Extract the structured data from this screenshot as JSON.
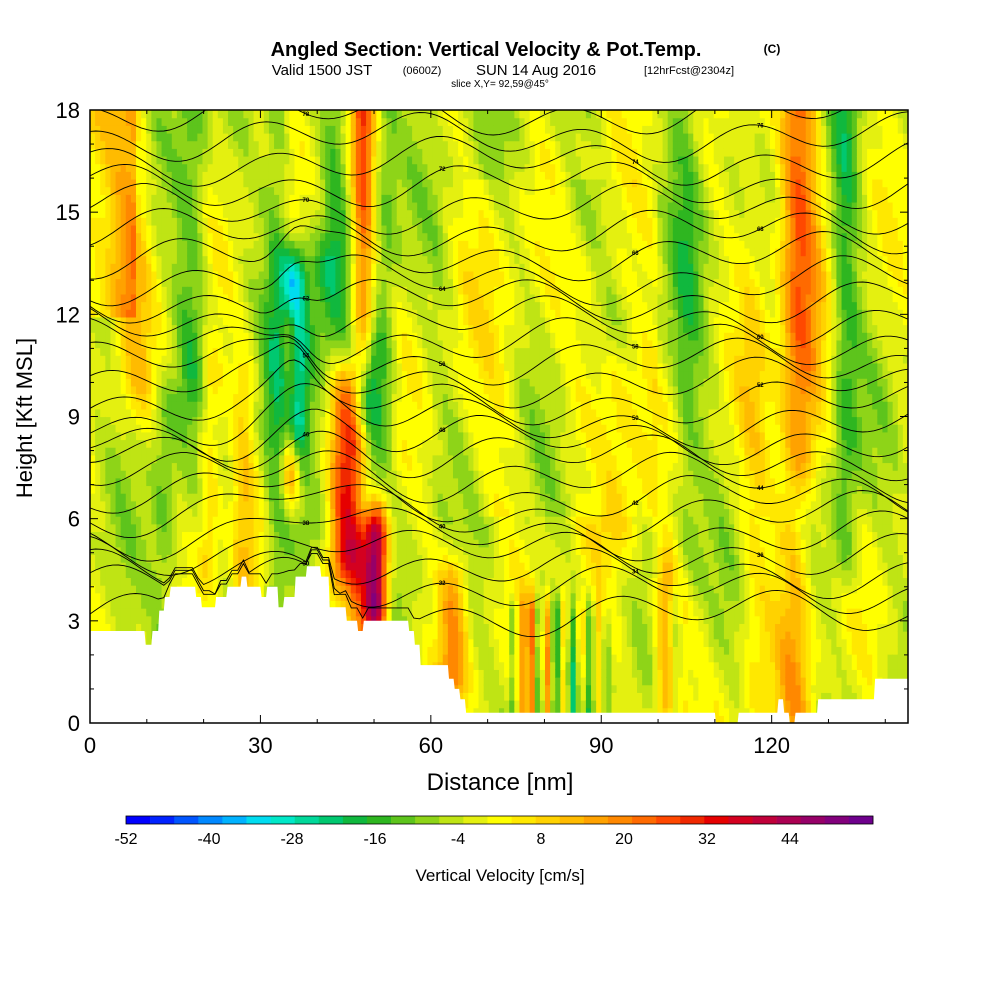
{
  "header": {
    "title": "Angled Section: Vertical Velocity & Pot.Temp.",
    "title_suffix": "(C)",
    "valid_prefix": "Valid 1500 JST",
    "valid_utc": "(0600Z)",
    "valid_date": "SUN 14 Aug 2016",
    "forecast": "[12hrFcst@2304z]",
    "slice": "slice X,Y= 92,59@45°"
  },
  "chart_data": {
    "type": "heatmap",
    "xlabel": "Distance [nm]",
    "ylabel": "Height [Kft MSL]",
    "xlim": [
      0,
      144
    ],
    "ylim": [
      0,
      18
    ],
    "x_ticks": [
      "0",
      "30",
      "60",
      "90",
      "120"
    ],
    "y_ticks": [
      "0",
      "3",
      "6",
      "9",
      "12",
      "15",
      "18"
    ],
    "colorbar": {
      "label": "Vertical Velocity [cm/s]",
      "tick_labels": [
        "-52",
        "-40",
        "-28",
        "-16",
        "-4",
        "8",
        "20",
        "32",
        "44"
      ],
      "min": -52,
      "max": 56,
      "step": 4,
      "colors": [
        "#0000ff",
        "#0022ff",
        "#0055ff",
        "#0088ff",
        "#00b2ff",
        "#00dcf0",
        "#00e8c8",
        "#00d89a",
        "#00c870",
        "#10b83e",
        "#2eb620",
        "#5dc41c",
        "#8ed418",
        "#bfe414",
        "#e4f010",
        "#ffff00",
        "#ffe800",
        "#ffd200",
        "#ffbb00",
        "#ffa200",
        "#ff8800",
        "#ff6a00",
        "#ff4800",
        "#f02800",
        "#e60000",
        "#d40020",
        "#c0003a",
        "#ab0052",
        "#960068",
        "#82007c",
        "#6e008c"
      ]
    },
    "velocity_features": [
      {
        "x": 36,
        "zlo": 9.0,
        "zhi": 12.8,
        "w": 2.2,
        "v": -34
      },
      {
        "x": 35.2,
        "zlo": 7.5,
        "zhi": 11.2,
        "w": 1.6,
        "v": 30
      },
      {
        "x": 50.5,
        "zlo": 3.6,
        "zhi": 5.4,
        "w": 2.0,
        "v": 50
      },
      {
        "x": 45,
        "zlo": 5.0,
        "zhi": 9.5,
        "w": 3.0,
        "v": 34
      },
      {
        "x": 49,
        "zlo": 7.0,
        "zhi": 10.5,
        "w": 2.6,
        "v": -26
      },
      {
        "x": 48,
        "zlo": 3.0,
        "zhi": 8.0,
        "w": 3.0,
        "v": 24
      },
      {
        "x": 41,
        "zlo": 6.0,
        "zhi": 13.0,
        "w": 5.0,
        "v": -12
      },
      {
        "x": 33,
        "zlo": 4.0,
        "zhi": 18.0,
        "w": 2.4,
        "v": -12
      },
      {
        "x": 43,
        "zlo": 14.0,
        "zhi": 18.0,
        "w": 2.2,
        "v": -10
      },
      {
        "x": 48,
        "zlo": 11.0,
        "zhi": 18.0,
        "w": 2.0,
        "v": 30
      },
      {
        "x": 52,
        "zlo": 9.0,
        "zhi": 18.0,
        "w": 2.2,
        "v": -10
      },
      {
        "x": 102,
        "zlo": 0.5,
        "zhi": 4.0,
        "w": 2.5,
        "v": 28
      },
      {
        "x": 103,
        "zlo": 0.5,
        "zhi": 3.5,
        "w": 1.2,
        "v": -20
      },
      {
        "x": 124,
        "zlo": 0.5,
        "zhi": 18.0,
        "w": 3.0,
        "v": 16
      },
      {
        "x": 126,
        "zlo": 8.0,
        "zhi": 18.0,
        "w": 3.5,
        "v": 14
      },
      {
        "x": 133,
        "zlo": 5.0,
        "zhi": 18.0,
        "w": 2.4,
        "v": -14
      },
      {
        "x": 105,
        "zlo": 5.0,
        "zhi": 18.0,
        "w": 3.0,
        "v": -10
      },
      {
        "x": 18,
        "zlo": 10.0,
        "zhi": 18.0,
        "w": 2.8,
        "v": -12
      },
      {
        "x": 8,
        "zlo": 10.0,
        "zhi": 18.0,
        "w": 3.0,
        "v": 10
      },
      {
        "x": 13,
        "zlo": 3.0,
        "zhi": 9.0,
        "w": 2.2,
        "v": -10
      },
      {
        "x": 21,
        "zlo": 5.0,
        "zhi": 10.0,
        "w": 2.0,
        "v": 14
      },
      {
        "x": 27,
        "zlo": 4.0,
        "zhi": 10.0,
        "w": 2.0,
        "v": 10
      },
      {
        "x": 64,
        "zlo": 1.5,
        "zhi": 4.0,
        "w": 2.5,
        "v": 20
      },
      {
        "x": 88,
        "zlo": 9.0,
        "zhi": 13.0,
        "w": 6.0,
        "v": 8
      },
      {
        "x": 93,
        "zlo": 6.0,
        "zhi": 10.0,
        "w": 4.0,
        "v": 10
      },
      {
        "x": 117,
        "zlo": 1.0,
        "zhi": 18.0,
        "w": 3.0,
        "v": 8
      }
    ],
    "low_level_bands": {
      "x": [
        74.5,
        76,
        77.5,
        79,
        80.5,
        82,
        83.5,
        85,
        86.5,
        88,
        89.5,
        91
      ],
      "v": [
        -14,
        14,
        32,
        -16,
        20,
        -18,
        16,
        -14,
        12,
        -12,
        10,
        -10
      ],
      "zhi": 3.0
    },
    "terrain_kft": [
      [
        0,
        2.7
      ],
      [
        9.6,
        2.7
      ],
      [
        9.8,
        2.3
      ],
      [
        10.8,
        2.3
      ],
      [
        11,
        2.7
      ],
      [
        12,
        2.7
      ],
      [
        12.2,
        3.3
      ],
      [
        13,
        3.3
      ],
      [
        13.2,
        3.7
      ],
      [
        14,
        3.7
      ],
      [
        14.2,
        4.0
      ],
      [
        18.5,
        4.0
      ],
      [
        18.7,
        3.7
      ],
      [
        19.5,
        3.7
      ],
      [
        19.7,
        3.4
      ],
      [
        22,
        3.4
      ],
      [
        22.2,
        3.7
      ],
      [
        24,
        3.7
      ],
      [
        24.2,
        4.0
      ],
      [
        26.5,
        4.0
      ],
      [
        26.7,
        4.3
      ],
      [
        27.5,
        4.3
      ],
      [
        27.7,
        4.0
      ],
      [
        30,
        4.0
      ],
      [
        30.2,
        3.7
      ],
      [
        31,
        3.7
      ],
      [
        31.2,
        4.0
      ],
      [
        33,
        4.0
      ],
      [
        33.2,
        3.4
      ],
      [
        34,
        3.4
      ],
      [
        34.2,
        3.7
      ],
      [
        36,
        3.7
      ],
      [
        36.2,
        4.3
      ],
      [
        38,
        4.3
      ],
      [
        38.2,
        4.6
      ],
      [
        40.5,
        4.6
      ],
      [
        40.7,
        4.3
      ],
      [
        42,
        4.3
      ],
      [
        42.2,
        3.4
      ],
      [
        45,
        3.4
      ],
      [
        45.2,
        3.0
      ],
      [
        47,
        3.0
      ],
      [
        47.2,
        2.7
      ],
      [
        48,
        2.7
      ],
      [
        48.2,
        3.0
      ],
      [
        56,
        3.0
      ],
      [
        56.2,
        2.7
      ],
      [
        57,
        2.7
      ],
      [
        57.2,
        2.3
      ],
      [
        58,
        2.3
      ],
      [
        58.2,
        1.7
      ],
      [
        63,
        1.7
      ],
      [
        63.2,
        1.3
      ],
      [
        64,
        1.3
      ],
      [
        64.2,
        1.0
      ],
      [
        65,
        1.0
      ],
      [
        65.2,
        0.7
      ],
      [
        66,
        0.7
      ],
      [
        66.2,
        0.3
      ],
      [
        110,
        0.3
      ],
      [
        110.2,
        0.0
      ],
      [
        114,
        0.0
      ],
      [
        114.2,
        0.3
      ],
      [
        121,
        0.3
      ],
      [
        121.2,
        0.7
      ],
      [
        122,
        0.7
      ],
      [
        122.2,
        0.3
      ],
      [
        123,
        0.3
      ],
      [
        123.2,
        0.0
      ],
      [
        124,
        0.0
      ],
      [
        124.2,
        0.3
      ],
      [
        128,
        0.3
      ],
      [
        128.2,
        0.7
      ],
      [
        138,
        0.7
      ],
      [
        138.2,
        1.3
      ],
      [
        144,
        1.3
      ]
    ],
    "theta_contours": {
      "levels": [
        "30",
        "32",
        "34",
        "36",
        "38",
        "40",
        "42",
        "44",
        "46",
        "48",
        "50",
        "52",
        "54",
        "56",
        "58",
        "60",
        "62",
        "64",
        "66",
        "68",
        "70",
        "72",
        "74",
        "76",
        "78"
      ],
      "base_height_kft": [
        3.2,
        3.9,
        4.4,
        5.0,
        5.5,
        6.1,
        6.6,
        7.2,
        7.8,
        8.3,
        8.8,
        9.4,
        10.0,
        10.6,
        11.2,
        11.8,
        12.4,
        13.0,
        13.7,
        14.4,
        15.1,
        15.8,
        16.5,
        17.2,
        17.9
      ]
    }
  }
}
